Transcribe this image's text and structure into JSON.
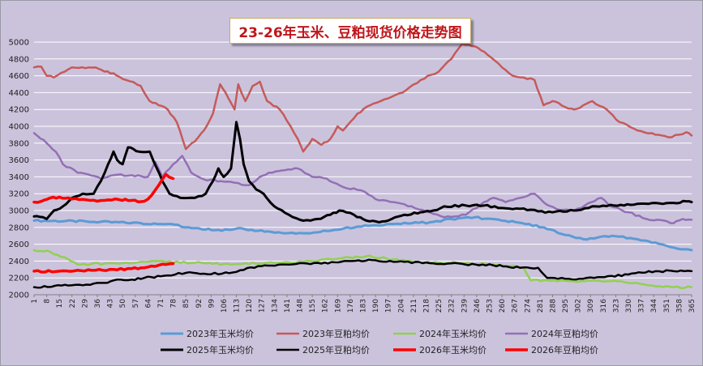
{
  "chart_data": {
    "type": "line",
    "title": "23-26年玉米、豆粕现货价格走势图",
    "xlabel": "",
    "ylabel": "",
    "ylim": [
      2000,
      5000
    ],
    "yticks": [
      2000,
      2200,
      2400,
      2600,
      2800,
      3000,
      3200,
      3400,
      3600,
      3800,
      4000,
      4200,
      4400,
      4600,
      4800,
      5000
    ],
    "xlim": [
      1,
      365
    ],
    "xticks": [
      1,
      8,
      15,
      22,
      29,
      36,
      43,
      50,
      57,
      64,
      71,
      78,
      85,
      92,
      99,
      106,
      113,
      120,
      127,
      134,
      141,
      148,
      155,
      162,
      169,
      176,
      183,
      190,
      197,
      204,
      211,
      218,
      225,
      232,
      239,
      246,
      253,
      260,
      267,
      274,
      281,
      288,
      295,
      302,
      309,
      316,
      323,
      330,
      337,
      344,
      351,
      358,
      365
    ],
    "grid": true,
    "legend_position": "bottom",
    "series": [
      {
        "name": "2023年玉米均价",
        "color": "#5b9bd5",
        "width": 3,
        "points": [
          [
            1,
            2880
          ],
          [
            30,
            2870
          ],
          [
            60,
            2850
          ],
          [
            75,
            2840
          ],
          [
            90,
            2790
          ],
          [
            105,
            2760
          ],
          [
            114,
            2790
          ],
          [
            125,
            2760
          ],
          [
            140,
            2730
          ],
          [
            150,
            2730
          ],
          [
            165,
            2760
          ],
          [
            180,
            2810
          ],
          [
            200,
            2840
          ],
          [
            220,
            2860
          ],
          [
            232,
            2900
          ],
          [
            245,
            2920
          ],
          [
            260,
            2880
          ],
          [
            275,
            2840
          ],
          [
            285,
            2780
          ],
          [
            295,
            2710
          ],
          [
            305,
            2660
          ],
          [
            315,
            2690
          ],
          [
            325,
            2690
          ],
          [
            335,
            2660
          ],
          [
            345,
            2620
          ],
          [
            355,
            2560
          ],
          [
            365,
            2530
          ]
        ]
      },
      {
        "name": "2023年豆粕均价",
        "color": "#c55a5a",
        "width": 2.5,
        "points": [
          [
            1,
            4700
          ],
          [
            5,
            4710
          ],
          [
            8,
            4600
          ],
          [
            12,
            4580
          ],
          [
            18,
            4650
          ],
          [
            22,
            4700
          ],
          [
            35,
            4700
          ],
          [
            40,
            4650
          ],
          [
            45,
            4630
          ],
          [
            52,
            4550
          ],
          [
            60,
            4480
          ],
          [
            65,
            4300
          ],
          [
            70,
            4250
          ],
          [
            75,
            4200
          ],
          [
            80,
            4050
          ],
          [
            85,
            3730
          ],
          [
            90,
            3820
          ],
          [
            95,
            3950
          ],
          [
            100,
            4150
          ],
          [
            104,
            4500
          ],
          [
            107,
            4400
          ],
          [
            112,
            4200
          ],
          [
            114,
            4500
          ],
          [
            118,
            4300
          ],
          [
            122,
            4480
          ],
          [
            126,
            4530
          ],
          [
            130,
            4300
          ],
          [
            137,
            4200
          ],
          [
            143,
            4000
          ],
          [
            147,
            3850
          ],
          [
            150,
            3700
          ],
          [
            155,
            3850
          ],
          [
            160,
            3780
          ],
          [
            165,
            3850
          ],
          [
            169,
            4000
          ],
          [
            172,
            3950
          ],
          [
            176,
            4050
          ],
          [
            180,
            4150
          ],
          [
            187,
            4250
          ],
          [
            195,
            4320
          ],
          [
            205,
            4400
          ],
          [
            215,
            4550
          ],
          [
            225,
            4650
          ],
          [
            232,
            4800
          ],
          [
            238,
            4980
          ],
          [
            245,
            4950
          ],
          [
            252,
            4850
          ],
          [
            260,
            4700
          ],
          [
            266,
            4600
          ],
          [
            272,
            4580
          ],
          [
            278,
            4550
          ],
          [
            283,
            4250
          ],
          [
            288,
            4300
          ],
          [
            295,
            4230
          ],
          [
            300,
            4200
          ],
          [
            305,
            4250
          ],
          [
            310,
            4300
          ],
          [
            318,
            4200
          ],
          [
            325,
            4050
          ],
          [
            335,
            3950
          ],
          [
            345,
            3900
          ],
          [
            352,
            3870
          ],
          [
            358,
            3900
          ],
          [
            362,
            3930
          ],
          [
            365,
            3890
          ]
        ]
      },
      {
        "name": "2024年玉米均价",
        "color": "#92d050",
        "width": 2.5,
        "points": [
          [
            1,
            2530
          ],
          [
            10,
            2510
          ],
          [
            20,
            2420
          ],
          [
            25,
            2360
          ],
          [
            40,
            2370
          ],
          [
            62,
            2390
          ],
          [
            70,
            2400
          ],
          [
            90,
            2380
          ],
          [
            110,
            2360
          ],
          [
            130,
            2380
          ],
          [
            150,
            2390
          ],
          [
            170,
            2430
          ],
          [
            185,
            2460
          ],
          [
            200,
            2420
          ],
          [
            215,
            2380
          ],
          [
            235,
            2380
          ],
          [
            255,
            2360
          ],
          [
            272,
            2320
          ],
          [
            276,
            2170
          ],
          [
            285,
            2170
          ],
          [
            300,
            2160
          ],
          [
            320,
            2160
          ],
          [
            335,
            2140
          ],
          [
            345,
            2100
          ],
          [
            355,
            2090
          ],
          [
            365,
            2090
          ]
        ]
      },
      {
        "name": "2024年豆粕均价",
        "color": "#9370b5",
        "width": 2.5,
        "points": [
          [
            1,
            3920
          ],
          [
            8,
            3800
          ],
          [
            13,
            3700
          ],
          [
            17,
            3550
          ],
          [
            25,
            3450
          ],
          [
            31,
            3430
          ],
          [
            38,
            3380
          ],
          [
            45,
            3420
          ],
          [
            55,
            3420
          ],
          [
            64,
            3400
          ],
          [
            68,
            3580
          ],
          [
            72,
            3400
          ],
          [
            78,
            3550
          ],
          [
            83,
            3650
          ],
          [
            88,
            3450
          ],
          [
            95,
            3370
          ],
          [
            110,
            3340
          ],
          [
            120,
            3300
          ],
          [
            126,
            3400
          ],
          [
            131,
            3450
          ],
          [
            140,
            3480
          ],
          [
            147,
            3500
          ],
          [
            155,
            3400
          ],
          [
            163,
            3380
          ],
          [
            172,
            3280
          ],
          [
            182,
            3240
          ],
          [
            192,
            3120
          ],
          [
            200,
            3100
          ],
          [
            210,
            3050
          ],
          [
            220,
            2980
          ],
          [
            228,
            2920
          ],
          [
            240,
            2950
          ],
          [
            250,
            3100
          ],
          [
            255,
            3150
          ],
          [
            262,
            3100
          ],
          [
            270,
            3150
          ],
          [
            278,
            3200
          ],
          [
            283,
            3100
          ],
          [
            290,
            3020
          ],
          [
            300,
            3000
          ],
          [
            315,
            3150
          ],
          [
            320,
            3050
          ],
          [
            330,
            2980
          ],
          [
            340,
            2900
          ],
          [
            350,
            2880
          ],
          [
            355,
            2850
          ],
          [
            360,
            2900
          ],
          [
            365,
            2890
          ]
        ]
      },
      {
        "name": "2025年玉米均价",
        "color": "#000000",
        "width": 3,
        "points": [
          [
            1,
            2930
          ],
          [
            6,
            2920
          ],
          [
            8,
            2900
          ],
          [
            12,
            3000
          ],
          [
            17,
            3050
          ],
          [
            22,
            3150
          ],
          [
            28,
            3200
          ],
          [
            34,
            3200
          ],
          [
            38,
            3350
          ],
          [
            42,
            3550
          ],
          [
            45,
            3700
          ],
          [
            47,
            3600
          ],
          [
            50,
            3550
          ],
          [
            53,
            3750
          ],
          [
            56,
            3730
          ],
          [
            59,
            3700
          ],
          [
            65,
            3700
          ],
          [
            69,
            3500
          ],
          [
            72,
            3350
          ],
          [
            76,
            3200
          ],
          [
            82,
            3150
          ],
          [
            90,
            3150
          ],
          [
            96,
            3200
          ],
          [
            100,
            3350
          ],
          [
            103,
            3500
          ],
          [
            106,
            3400
          ],
          [
            110,
            3500
          ],
          [
            113,
            4050
          ],
          [
            115,
            3850
          ],
          [
            117,
            3550
          ],
          [
            120,
            3350
          ],
          [
            124,
            3250
          ],
          [
            128,
            3200
          ],
          [
            134,
            3050
          ],
          [
            142,
            2950
          ],
          [
            150,
            2880
          ],
          [
            158,
            2900
          ],
          [
            165,
            2950
          ],
          [
            170,
            3000
          ],
          [
            178,
            2950
          ],
          [
            185,
            2880
          ],
          [
            192,
            2860
          ],
          [
            199,
            2900
          ],
          [
            206,
            2950
          ],
          [
            215,
            2980
          ],
          [
            222,
            3000
          ],
          [
            228,
            3050
          ],
          [
            240,
            3060
          ],
          [
            250,
            3060
          ],
          [
            260,
            3030
          ],
          [
            270,
            3020
          ],
          [
            280,
            2990
          ],
          [
            288,
            2980
          ],
          [
            300,
            3000
          ],
          [
            310,
            3050
          ],
          [
            322,
            3060
          ],
          [
            335,
            3080
          ],
          [
            345,
            3090
          ],
          [
            355,
            3090
          ],
          [
            362,
            3110
          ],
          [
            365,
            3100
          ]
        ]
      },
      {
        "name": "2025年豆粕均价",
        "color": "#000000",
        "width": 2.5,
        "points": [
          [
            1,
            2090
          ],
          [
            20,
            2110
          ],
          [
            30,
            2120
          ],
          [
            40,
            2140
          ],
          [
            45,
            2170
          ],
          [
            55,
            2180
          ],
          [
            62,
            2200
          ],
          [
            75,
            2230
          ],
          [
            85,
            2260
          ],
          [
            95,
            2250
          ],
          [
            105,
            2250
          ],
          [
            115,
            2290
          ],
          [
            125,
            2340
          ],
          [
            140,
            2360
          ],
          [
            160,
            2370
          ],
          [
            175,
            2400
          ],
          [
            190,
            2410
          ],
          [
            200,
            2390
          ],
          [
            230,
            2370
          ],
          [
            255,
            2350
          ],
          [
            270,
            2320
          ],
          [
            280,
            2320
          ],
          [
            285,
            2200
          ],
          [
            295,
            2190
          ],
          [
            305,
            2190
          ],
          [
            315,
            2210
          ],
          [
            330,
            2240
          ],
          [
            345,
            2280
          ],
          [
            355,
            2280
          ],
          [
            365,
            2280
          ]
        ]
      },
      {
        "name": "2026年玉米均价",
        "color": "#ff0000",
        "width": 3.5,
        "points": [
          [
            1,
            2280
          ],
          [
            15,
            2280
          ],
          [
            25,
            2290
          ],
          [
            35,
            2290
          ],
          [
            45,
            2300
          ],
          [
            55,
            2310
          ],
          [
            62,
            2320
          ],
          [
            66,
            2340
          ],
          [
            70,
            2350
          ],
          [
            74,
            2360
          ],
          [
            78,
            2370
          ]
        ]
      },
      {
        "name": "2026年豆粕均价",
        "color": "#ff0000",
        "width": 3.5,
        "points": [
          [
            1,
            3100
          ],
          [
            5,
            3110
          ],
          [
            10,
            3150
          ],
          [
            15,
            3160
          ],
          [
            20,
            3150
          ],
          [
            26,
            3130
          ],
          [
            32,
            3120
          ],
          [
            40,
            3120
          ],
          [
            48,
            3130
          ],
          [
            55,
            3120
          ],
          [
            62,
            3110
          ],
          [
            66,
            3180
          ],
          [
            70,
            3300
          ],
          [
            74,
            3430
          ],
          [
            78,
            3380
          ]
        ]
      }
    ]
  }
}
